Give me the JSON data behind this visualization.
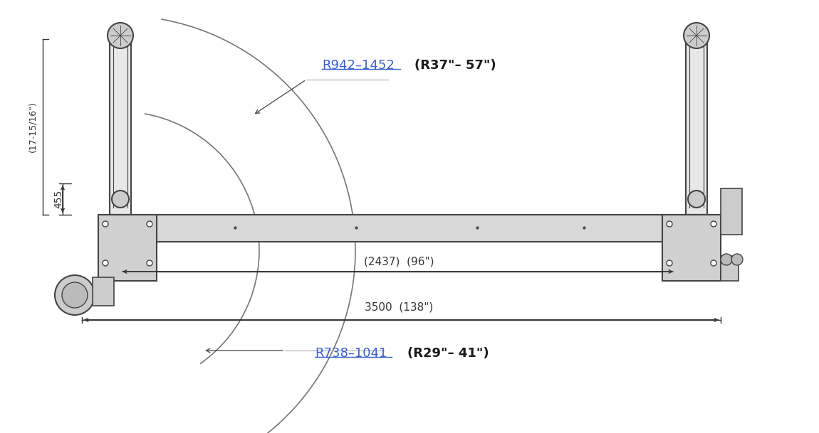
{
  "bg_color": "#ffffff",
  "fig_width": 11.5,
  "fig_height": 6.09,
  "label_r942": "R942–1452",
  "label_r942_imperial": "(R37\"– 57\")",
  "label_r738": "R738–1041",
  "label_r738_imperial": "(R29\"– 41\")",
  "label_2437": "(2437)  (96\")",
  "label_3500": "3500  (138\")",
  "label_455": "455",
  "label_height": "(17-15/16\")",
  "dim_color": "#3a5fcd",
  "text_color_black": "#1a1a1a",
  "line_color": "#555555",
  "part_color": "#444444",
  "arc_color": "#777777"
}
